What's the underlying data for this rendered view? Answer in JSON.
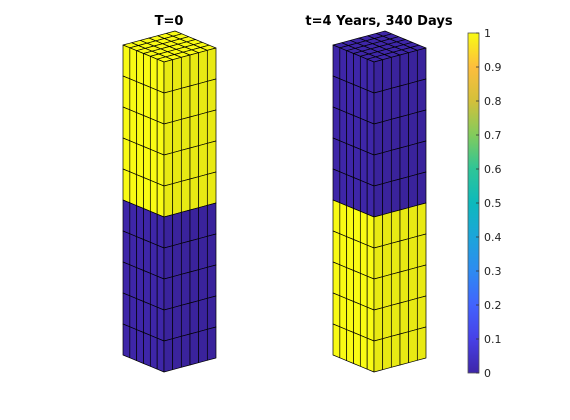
{
  "panels": [
    {
      "title": "T=0",
      "upper_value": 1,
      "lower_value": 0
    },
    {
      "title": "t=4 Years, 340 Days",
      "upper_value": 0,
      "lower_value": 1
    }
  ],
  "grid": {
    "columns": 6,
    "rows": 10,
    "upper_rows": 5
  },
  "colorbar": {
    "min": 0,
    "max": 1,
    "ticks": [
      "0",
      "0.1",
      "0.2",
      "0.3",
      "0.4",
      "0.5",
      "0.6",
      "0.7",
      "0.8",
      "0.9",
      "1"
    ],
    "colors": [
      "#3e26a8",
      "#4740e7",
      "#4263fd",
      "#2d8bf1",
      "#1ba5da",
      "#0db9bc",
      "#2ec597",
      "#82cb5c",
      "#d3c03a",
      "#fdbe3d",
      "#f9fb14"
    ]
  },
  "colors": {
    "yellow": "#f9fb14",
    "blue": "#3e26a8",
    "edge": "#000000"
  }
}
